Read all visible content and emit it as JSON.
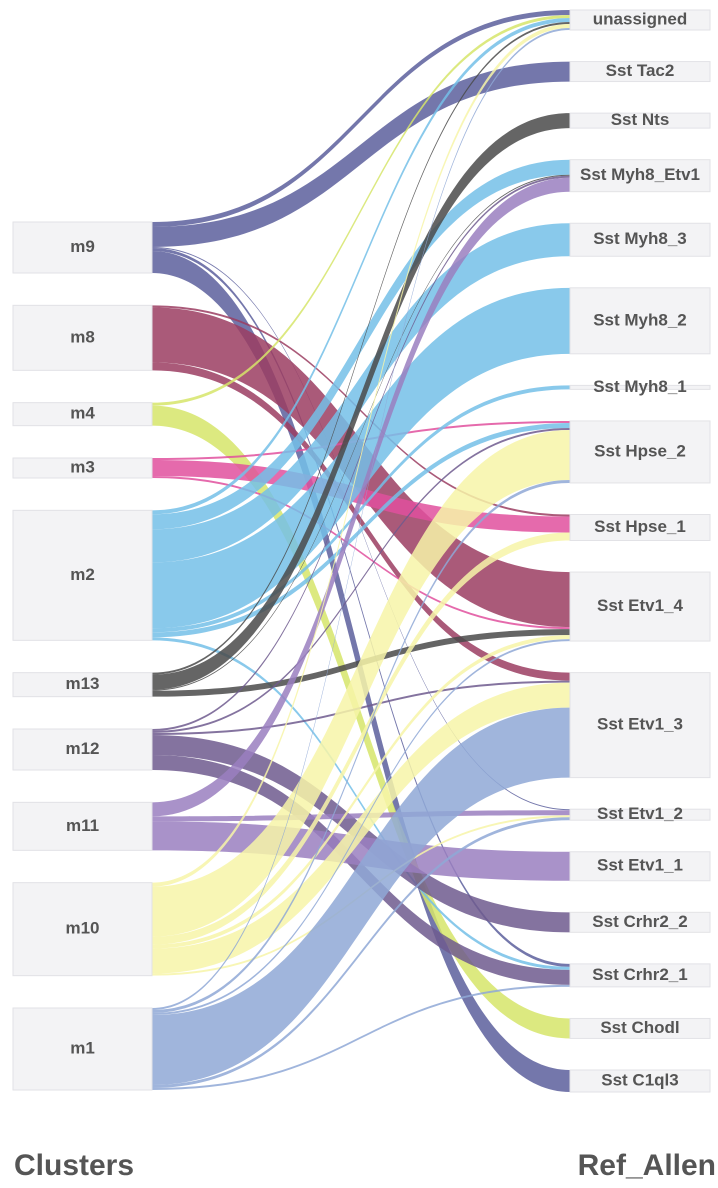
{
  "chart_data": {
    "type": "sankey",
    "source_label": "Clusters",
    "target_label": "Ref_Allen",
    "sources": [
      {
        "name": "m9",
        "color": "#5c5f9c"
      },
      {
        "name": "m8",
        "color": "#9b3d62"
      },
      {
        "name": "m4",
        "color": "#d6e56a"
      },
      {
        "name": "m3",
        "color": "#e0509d"
      },
      {
        "name": "m2",
        "color": "#74bfe8"
      },
      {
        "name": "m13",
        "color": "#4a4a4a"
      },
      {
        "name": "m12",
        "color": "#6e5a8e"
      },
      {
        "name": "m11",
        "color": "#9a7fc0"
      },
      {
        "name": "m10",
        "color": "#f7f4a8"
      },
      {
        "name": "m1",
        "color": "#8fa8d6"
      }
    ],
    "targets": [
      "unassigned",
      "Sst Tac2",
      "Sst Nts",
      "Sst Myh8_Etv1",
      "Sst Myh8_3",
      "Sst Myh8_2",
      "Sst Myh8_1",
      "Sst Hpse_2",
      "Sst Hpse_1",
      "Sst Etv1_4",
      "Sst Etv1_3",
      "Sst Etv1_2",
      "Sst Etv1_1",
      "Sst Crhr2_2",
      "Sst Crhr2_1",
      "Sst Chodl",
      "Sst C1ql3"
    ],
    "links": [
      {
        "source": "m9",
        "target": "unassigned",
        "value": 5
      },
      {
        "source": "m9",
        "target": "Sst Tac2",
        "value": 20
      },
      {
        "source": "m9",
        "target": "Sst Etv1_2",
        "value": 1
      },
      {
        "source": "m9",
        "target": "Sst Crhr2_1",
        "value": 3
      },
      {
        "source": "m9",
        "target": "Sst C1ql3",
        "value": 22
      },
      {
        "source": "m8",
        "target": "Sst Hpse_1",
        "value": 2
      },
      {
        "source": "m8",
        "target": "Sst Etv1_4",
        "value": 55
      },
      {
        "source": "m8",
        "target": "Sst Etv1_3",
        "value": 8
      },
      {
        "source": "m4",
        "target": "unassigned",
        "value": 3
      },
      {
        "source": "m4",
        "target": "Sst Chodl",
        "value": 20
      },
      {
        "source": "m3",
        "target": "Sst Hpse_2",
        "value": 2
      },
      {
        "source": "m3",
        "target": "Sst Hpse_1",
        "value": 16
      },
      {
        "source": "m3",
        "target": "Sst Etv1_4",
        "value": 2
      },
      {
        "source": "m2",
        "target": "unassigned",
        "value": 4
      },
      {
        "source": "m2",
        "target": "Sst Myh8_Etv1",
        "value": 15
      },
      {
        "source": "m2",
        "target": "Sst Myh8_3",
        "value": 33
      },
      {
        "source": "m2",
        "target": "Sst Myh8_2",
        "value": 66
      },
      {
        "source": "m2",
        "target": "Sst Myh8_1",
        "value": 4
      },
      {
        "source": "m2",
        "target": "Sst Hpse_2",
        "value": 5
      },
      {
        "source": "m2",
        "target": "Sst Crhr2_1",
        "value": 3
      },
      {
        "source": "m13",
        "target": "unassigned",
        "value": 2
      },
      {
        "source": "m13",
        "target": "Sst Nts",
        "value": 15
      },
      {
        "source": "m13",
        "target": "Sst Myh8_Etv1",
        "value": 1
      },
      {
        "source": "m13",
        "target": "Sst Etv1_4",
        "value": 6
      },
      {
        "source": "m12",
        "target": "Sst Myh8_Etv1",
        "value": 2
      },
      {
        "source": "m12",
        "target": "Sst Hpse_2",
        "value": 2
      },
      {
        "source": "m12",
        "target": "Sst Etv1_3",
        "value": 2
      },
      {
        "source": "m12",
        "target": "Sst Crhr2_2",
        "value": 20
      },
      {
        "source": "m12",
        "target": "Sst Crhr2_1",
        "value": 15
      },
      {
        "source": "m11",
        "target": "Sst Myh8_Etv1",
        "value": 14
      },
      {
        "source": "m11",
        "target": "Sst Etv1_2",
        "value": 5
      },
      {
        "source": "m11",
        "target": "Sst Etv1_1",
        "value": 29
      },
      {
        "source": "m10",
        "target": "unassigned",
        "value": 4
      },
      {
        "source": "m10",
        "target": "Sst Hpse_2",
        "value": 50
      },
      {
        "source": "m10",
        "target": "Sst Hpse_1",
        "value": 8
      },
      {
        "source": "m10",
        "target": "Sst Etv1_4",
        "value": 4
      },
      {
        "source": "m10",
        "target": "Sst Etv1_3",
        "value": 25
      },
      {
        "source": "m10",
        "target": "Sst Etv1_2",
        "value": 2
      },
      {
        "source": "m1",
        "target": "unassigned",
        "value": 2
      },
      {
        "source": "m1",
        "target": "Sst Hpse_2",
        "value": 3
      },
      {
        "source": "m1",
        "target": "Sst Etv1_4",
        "value": 2
      },
      {
        "source": "m1",
        "target": "Sst Etv1_3",
        "value": 70
      },
      {
        "source": "m1",
        "target": "Sst Etv1_2",
        "value": 3
      },
      {
        "source": "m1",
        "target": "Sst Crhr2_1",
        "value": 2
      }
    ]
  }
}
